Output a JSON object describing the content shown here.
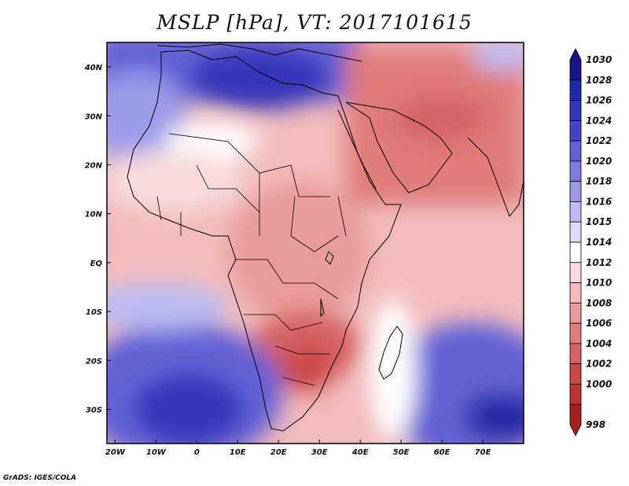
{
  "title": "MSLP [hPa], VT: 2017101615",
  "credit": "GrADS: IGES/COLA",
  "map": {
    "lon_range": [
      -22,
      80
    ],
    "lat_range": [
      -37,
      45
    ],
    "x_ticks": [
      {
        "lon": -20,
        "label": "20W"
      },
      {
        "lon": -10,
        "label": "10W"
      },
      {
        "lon": 0,
        "label": "0"
      },
      {
        "lon": 10,
        "label": "10E"
      },
      {
        "lon": 20,
        "label": "20E"
      },
      {
        "lon": 30,
        "label": "30E"
      },
      {
        "lon": 40,
        "label": "40E"
      },
      {
        "lon": 50,
        "label": "50E"
      },
      {
        "lon": 60,
        "label": "60E"
      },
      {
        "lon": 70,
        "label": "70E"
      }
    ],
    "y_ticks": [
      {
        "lat": 40,
        "label": "40N"
      },
      {
        "lat": 30,
        "label": "30N"
      },
      {
        "lat": 20,
        "label": "20N"
      },
      {
        "lat": 10,
        "label": "10N"
      },
      {
        "lat": 0,
        "label": "EQ"
      },
      {
        "lat": -10,
        "label": "10S"
      },
      {
        "lat": -20,
        "label": "20S"
      },
      {
        "lat": -30,
        "label": "30S"
      }
    ]
  },
  "colorbar": {
    "levels": [
      {
        "label": "1030",
        "color": "#18148c"
      },
      {
        "label": "1028",
        "color": "#2626a6"
      },
      {
        "label": "1026",
        "color": "#3535b9"
      },
      {
        "label": "1024",
        "color": "#4646c8"
      },
      {
        "label": "1022",
        "color": "#6262d6"
      },
      {
        "label": "1020",
        "color": "#7c7ce0"
      },
      {
        "label": "1018",
        "color": "#9b9bea"
      },
      {
        "label": "1016",
        "color": "#bcbcf2"
      },
      {
        "label": "1015",
        "color": "#dcdcf8"
      },
      {
        "label": "1014",
        "color": "#ffffff"
      },
      {
        "label": "1012",
        "color": "#f8dcdc"
      },
      {
        "label": "1010",
        "color": "#f2bcbc"
      },
      {
        "label": "1008",
        "color": "#ea9b9b"
      },
      {
        "label": "1006",
        "color": "#e07c7c"
      },
      {
        "label": "1004",
        "color": "#d66262"
      },
      {
        "label": "1002",
        "color": "#cc4848"
      },
      {
        "label": "1000",
        "color": "#bd3232"
      },
      {
        "label": "998",
        "color": "#a61e1e"
      }
    ]
  },
  "pressure_centers": [
    {
      "lon": 5,
      "lat": 40,
      "level": "1026"
    },
    {
      "lon": 12,
      "lat": 35,
      "level": "1024"
    },
    {
      "lon": -20,
      "lat": 36,
      "level": "1020"
    },
    {
      "lon": 2,
      "lat": 24,
      "level": "1015"
    },
    {
      "lon": 50,
      "lat": 32,
      "level": "1006"
    },
    {
      "lon": 28,
      "lat": -20,
      "level": "1004"
    },
    {
      "lon": 25,
      "lat": -15,
      "level": "1006"
    },
    {
      "lon": 22,
      "lat": 5,
      "level": "1008"
    },
    {
      "lon": -5,
      "lat": -28,
      "level": "1026"
    },
    {
      "lon": 75,
      "lat": -32,
      "level": "1028"
    },
    {
      "lon": 0,
      "lat": -10,
      "level": "1016"
    },
    {
      "lon": 40,
      "lat": 10,
      "level": "1008"
    }
  ],
  "colors": {
    "land_border": "#000000",
    "frame": "#000000"
  }
}
